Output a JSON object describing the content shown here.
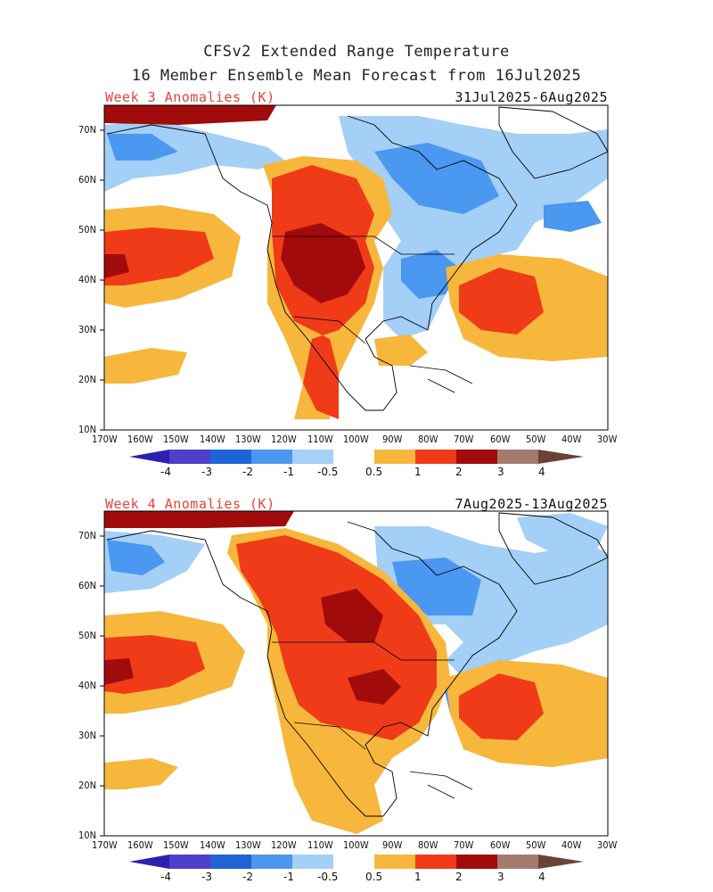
{
  "header": {
    "line1": "CFSv2 Extended Range Temperature",
    "line2": "16 Member Ensemble Mean Forecast from 16Jul2025"
  },
  "panels": [
    {
      "title": "Week 3 Anomalies (K)",
      "dates": "31Jul2025-6Aug2025"
    },
    {
      "title": "Week 4 Anomalies (K)",
      "dates": "7Aug2025-13Aug2025"
    }
  ],
  "axes": {
    "lat_labels": [
      "70N",
      "60N",
      "50N",
      "40N",
      "30N",
      "20N",
      "10N"
    ],
    "lon_labels": [
      "170W",
      "160W",
      "150W",
      "140W",
      "130W",
      "120W",
      "110W",
      "100W",
      "90W",
      "80W",
      "70W",
      "60W",
      "50W",
      "40W",
      "30W"
    ]
  },
  "colorbar": {
    "labels": [
      "-4",
      "-3",
      "-2",
      "-1",
      "-0.5",
      "0.5",
      "1",
      "2",
      "3",
      "4"
    ],
    "colors": [
      "#2d1fb0",
      "#4f3fc9",
      "#1f63d6",
      "#4a98ef",
      "#a4cff6",
      "#ffffff",
      "#f6b73c",
      "#ef3b18",
      "#a10b0b",
      "#a47a6f",
      "#6b4236"
    ]
  }
}
